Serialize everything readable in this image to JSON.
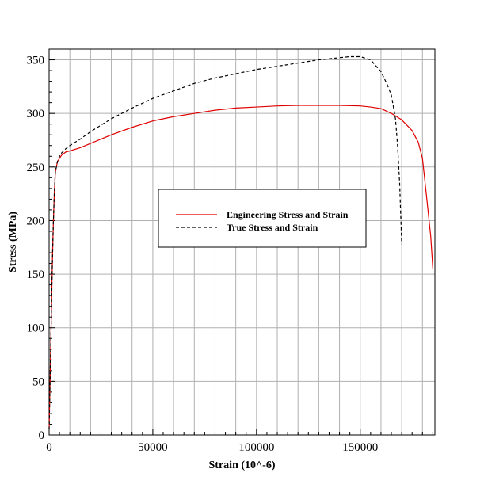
{
  "chart_data": {
    "type": "line",
    "title": "",
    "xlabel": "Strain (10^-6)",
    "ylabel": "Stress (MPa)",
    "xlim": [
      0,
      186000
    ],
    "ylim": [
      0,
      360
    ],
    "x_ticks": [
      0,
      50000,
      100000,
      150000
    ],
    "y_ticks": [
      0,
      50,
      100,
      150,
      200,
      250,
      300,
      350
    ],
    "x_minor_step": 10000,
    "y_minor_step": 10,
    "grid": true,
    "legend_position": "center-right",
    "series": [
      {
        "name": "Engineering Stress and Strain",
        "color": "#e00000",
        "line_style": "solid",
        "x": [
          0,
          500,
          1000,
          1500,
          2000,
          2500,
          3000,
          4000,
          5000,
          6000,
          8000,
          10000,
          15000,
          20000,
          30000,
          40000,
          50000,
          60000,
          70000,
          80000,
          90000,
          100000,
          110000,
          120000,
          130000,
          140000,
          150000,
          155000,
          160000,
          165000,
          170000,
          175000,
          178000,
          180000,
          182000,
          184000,
          185000
        ],
        "y": [
          5,
          55,
          105,
          155,
          195,
          225,
          245,
          255,
          258,
          261,
          264,
          265,
          268,
          272,
          280,
          287,
          293,
          297,
          300,
          303,
          305,
          306,
          307,
          307.5,
          307.5,
          307.5,
          307,
          306,
          304.5,
          300,
          294,
          284,
          273,
          258,
          222,
          185,
          155
        ]
      },
      {
        "name": "True Stress and Strain",
        "color": "#000000",
        "line_style": "dashed",
        "x": [
          0,
          500,
          1000,
          1500,
          2000,
          2500,
          3000,
          4000,
          5000,
          6000,
          8000,
          10000,
          15000,
          20000,
          30000,
          40000,
          50000,
          60000,
          70000,
          80000,
          90000,
          100000,
          110000,
          120000,
          130000,
          140000,
          145000,
          150000,
          155000,
          160000,
          163000,
          165000,
          167000,
          168000,
          169000,
          170000
        ],
        "y": [
          5,
          55,
          105,
          155,
          195,
          225,
          245,
          255,
          260,
          263,
          267,
          270,
          276,
          283,
          295,
          305,
          314,
          321,
          328,
          333,
          337,
          341,
          344,
          347,
          350,
          352,
          353,
          353,
          350,
          339,
          327,
          317,
          295,
          270,
          235,
          178
        ]
      }
    ]
  }
}
